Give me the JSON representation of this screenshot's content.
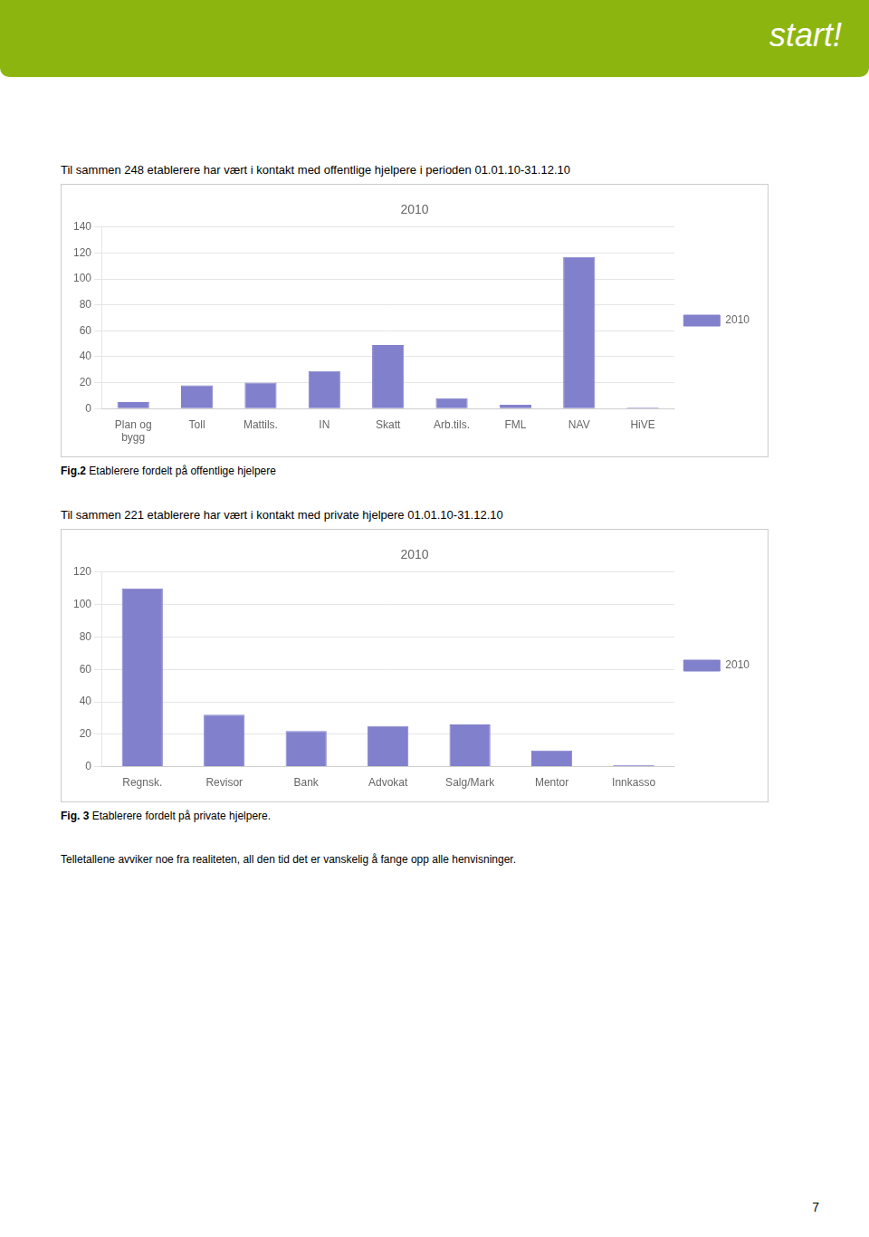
{
  "header_text": "start!",
  "chart_data": [
    {
      "type": "bar",
      "subtitle": "Til sammen 248 etablerere har vært i kontakt med offentlige hjelpere i perioden 01.01.10-31.12.10",
      "title": "2010",
      "categories": [
        "Plan og\nbygg",
        "Toll",
        "Mattils.",
        "IN",
        "Skatt",
        "Arb.tils.",
        "FML",
        "NAV",
        "HiVE"
      ],
      "series": [
        {
          "name": "2010",
          "color": "#8080cc",
          "values": [
            5,
            18,
            20,
            29,
            49,
            8,
            3,
            117,
            1
          ]
        }
      ],
      "ylim": [
        0,
        140
      ],
      "yticks": [
        0,
        20,
        40,
        60,
        80,
        100,
        120,
        140
      ],
      "grid": true,
      "legend": "right",
      "caption_label": "Fig.2",
      "caption": "Etablerere fordelt på offentlige hjelpere"
    },
    {
      "type": "bar",
      "subtitle": "Til sammen 221 etablerere har vært i kontakt med private hjelpere 01.01.10-31.12.10",
      "title": "2010",
      "categories": [
        "Regnsk.",
        "Revisor",
        "Bank",
        "Advokat",
        "Salg/Mark",
        "Mentor",
        "Innkasso"
      ],
      "series": [
        {
          "name": "2010",
          "color": "#8080cc",
          "values": [
            110,
            32,
            22,
            25,
            26,
            10,
            1
          ]
        }
      ],
      "ylim": [
        0,
        120
      ],
      "yticks": [
        0,
        20,
        40,
        60,
        80,
        100,
        120
      ],
      "grid": true,
      "legend": "right",
      "caption_label": "Fig. 3",
      "caption": "Etablerere fordelt på private hjelpere."
    }
  ],
  "footer_text": "Telletallene avviker noe fra realiteten, all den tid det er vanskelig å fange opp alle henvisninger.",
  "page_number": "7"
}
